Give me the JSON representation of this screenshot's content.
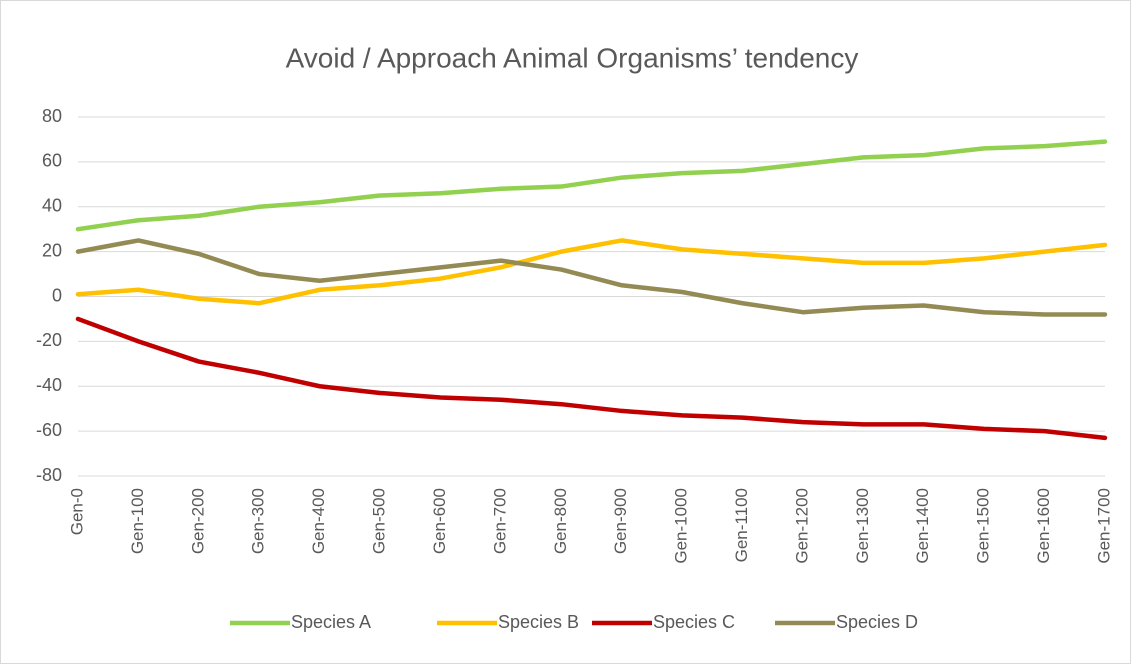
{
  "chart_data": {
    "type": "line",
    "title": "Avoid / Approach Animal Organisms’ tendency",
    "categories": [
      "Gen-0",
      "Gen-100",
      "Gen-200",
      "Gen-300",
      "Gen-400",
      "Gen-500",
      "Gen-600",
      "Gen-700",
      "Gen-800",
      "Gen-900",
      "Gen-1000",
      "Gen-1100",
      "Gen-1200",
      "Gen-1300",
      "Gen-1400",
      "Gen-1500",
      "Gen-1600",
      "Gen-1700"
    ],
    "series": [
      {
        "name": "Species A",
        "color": "#92d050",
        "values": [
          30,
          34,
          36,
          40,
          42,
          45,
          46,
          48,
          49,
          53,
          55,
          56,
          59,
          62,
          63,
          66,
          67,
          69
        ]
      },
      {
        "name": "Species B",
        "color": "#ffc000",
        "values": [
          1,
          3,
          -1,
          -3,
          3,
          5,
          8,
          13,
          20,
          25,
          21,
          19,
          17,
          15,
          15,
          17,
          20,
          23
        ]
      },
      {
        "name": "Species C",
        "color": "#c00000",
        "values": [
          -10,
          -20,
          -29,
          -34,
          -40,
          -43,
          -45,
          -46,
          -48,
          -51,
          -53,
          -54,
          -56,
          -57,
          -57,
          -59,
          -60,
          -63
        ]
      },
      {
        "name": "Species D",
        "color": "#948a54",
        "values": [
          20,
          25,
          19,
          10,
          7,
          10,
          13,
          16,
          12,
          5,
          2,
          -3,
          -7,
          -5,
          -4,
          -7,
          -8,
          -8
        ]
      }
    ],
    "ylim": [
      -80,
      80
    ],
    "yticks": [
      -80,
      -60,
      -40,
      -20,
      0,
      20,
      40,
      60,
      80
    ],
    "grid": true,
    "legend": "bottom"
  }
}
